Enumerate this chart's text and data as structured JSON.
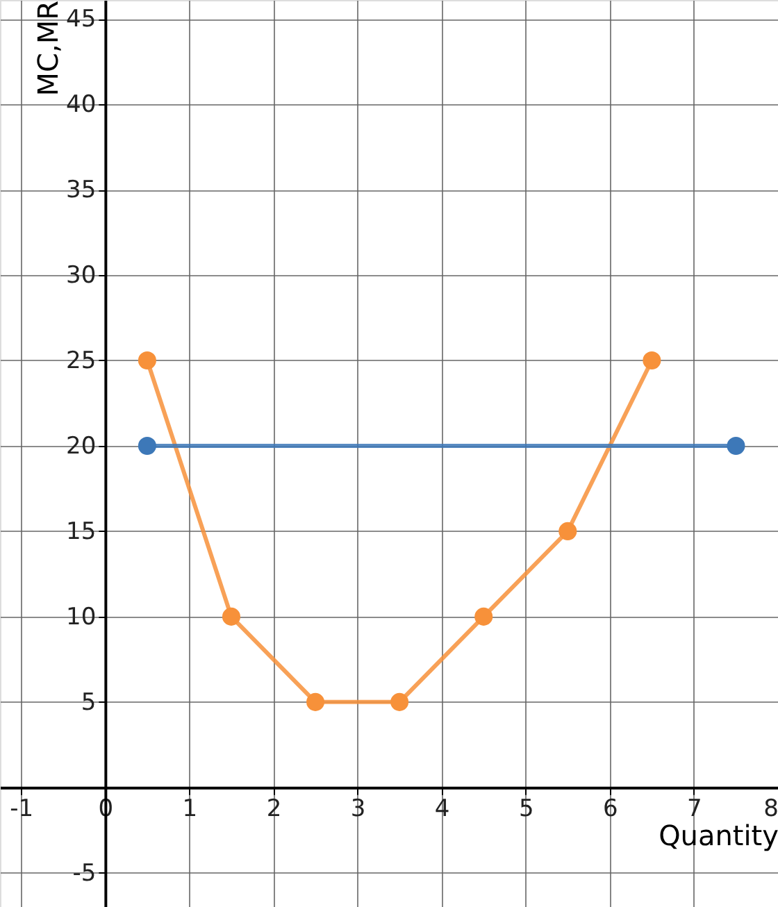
{
  "chart_data": {
    "type": "line",
    "xlabel": "Quantity",
    "ylabel": "MC,MR",
    "xlim": [
      -1.25,
      8.0
    ],
    "ylim": [
      -7,
      46.1
    ],
    "xticks": [
      -1,
      0,
      1,
      2,
      3,
      4,
      5,
      6,
      7,
      8
    ],
    "yticks": [
      -5,
      5,
      10,
      15,
      20,
      25,
      30,
      35,
      40,
      45
    ],
    "grid": true,
    "marker": "circle",
    "line_style": "solid",
    "series": [
      {
        "color": "#f7913a",
        "x": [
          0.5,
          1.5,
          2.5,
          3.5,
          4.5,
          5.5,
          6.5
        ],
        "values": [
          25,
          10,
          5,
          5,
          10,
          15,
          25
        ]
      },
      {
        "color": "#3d78b8",
        "x": [
          0.5,
          7.5
        ],
        "values": [
          20,
          20
        ]
      }
    ]
  }
}
